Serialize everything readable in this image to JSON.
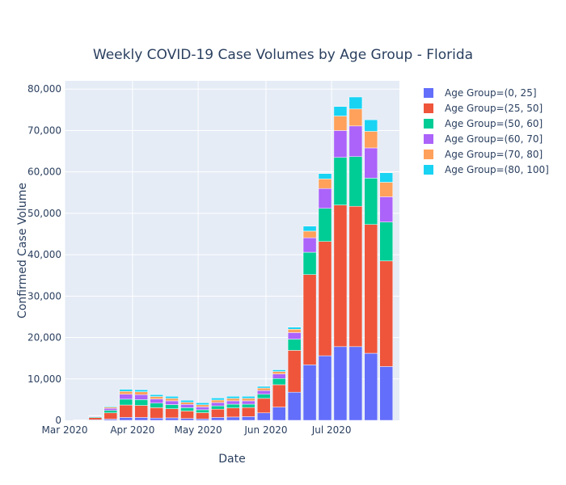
{
  "chart_data": {
    "type": "bar",
    "barmode": "stack",
    "title": "Weekly COVID-19 Case Volumes by Age Group - Florida",
    "xlabel": "Date",
    "ylabel": "Confirmed Case Volume",
    "ylim": [
      0,
      82000
    ],
    "yticks": [
      0,
      10000,
      20000,
      30000,
      40000,
      50000,
      60000,
      70000,
      80000
    ],
    "ytick_labels": [
      "0",
      "10,000",
      "20,000",
      "30,000",
      "40,000",
      "50,000",
      "60,000",
      "70,000",
      "80,000"
    ],
    "x_range": [
      "2020-03-01",
      "2020-08-01"
    ],
    "xticks": [
      {
        "date": "2020-03-01",
        "label": "Mar 2020"
      },
      {
        "date": "2020-04-01",
        "label": "Apr 2020"
      },
      {
        "date": "2020-05-01",
        "label": "May 2020"
      },
      {
        "date": "2020-06-01",
        "label": "Jun 2020"
      },
      {
        "date": "2020-07-01",
        "label": "Jul 2020"
      }
    ],
    "x": [
      "2020-03-08",
      "2020-03-15",
      "2020-03-22",
      "2020-03-29",
      "2020-04-05",
      "2020-04-12",
      "2020-04-19",
      "2020-04-26",
      "2020-05-03",
      "2020-05-10",
      "2020-05-17",
      "2020-05-24",
      "2020-05-31",
      "2020-06-07",
      "2020-06-14",
      "2020-06-21",
      "2020-06-28",
      "2020-07-05",
      "2020-07-12",
      "2020-07-19",
      "2020-07-26"
    ],
    "grid": true,
    "legend_position": "right",
    "series": [
      {
        "name": "Age Group=(0, 25]",
        "color": "#636efa",
        "values": [
          20,
          150,
          300,
          700,
          700,
          550,
          600,
          450,
          350,
          700,
          800,
          900,
          1800,
          3200,
          6800,
          13400,
          15600,
          17800,
          17800,
          16200,
          13000
        ]
      },
      {
        "name": "Age Group=(25, 50]",
        "color": "#ef553b",
        "values": [
          60,
          500,
          1500,
          3000,
          2900,
          2500,
          2200,
          1800,
          1500,
          2000,
          2200,
          2200,
          3500,
          5400,
          10100,
          21800,
          27600,
          34200,
          33900,
          31100,
          25500
        ]
      },
      {
        "name": "Age Group=(50, 60]",
        "color": "#00cc96",
        "values": [
          20,
          200,
          600,
          1400,
          1400,
          1100,
          1000,
          800,
          700,
          800,
          900,
          800,
          1000,
          1500,
          2700,
          5400,
          8000,
          11500,
          12000,
          11200,
          9400
        ]
      },
      {
        "name": "Age Group=(60, 70]",
        "color": "#ab63fa",
        "values": [
          20,
          150,
          500,
          1200,
          1200,
          1000,
          900,
          800,
          700,
          800,
          800,
          800,
          900,
          1100,
          1600,
          3500,
          4800,
          6500,
          7400,
          7300,
          6100
        ]
      },
      {
        "name": "Age Group=(70, 80]",
        "color": "#ffa15a",
        "values": [
          10,
          100,
          300,
          700,
          700,
          600,
          600,
          500,
          500,
          600,
          600,
          600,
          600,
          600,
          800,
          1600,
          2300,
          3500,
          4100,
          4000,
          3500
        ]
      },
      {
        "name": "Age Group=(80, 100]",
        "color": "#19d3f3",
        "values": [
          10,
          60,
          200,
          500,
          500,
          450,
          500,
          500,
          500,
          500,
          500,
          500,
          400,
          400,
          500,
          1200,
          1300,
          2300,
          2900,
          2800,
          2300
        ]
      }
    ]
  }
}
